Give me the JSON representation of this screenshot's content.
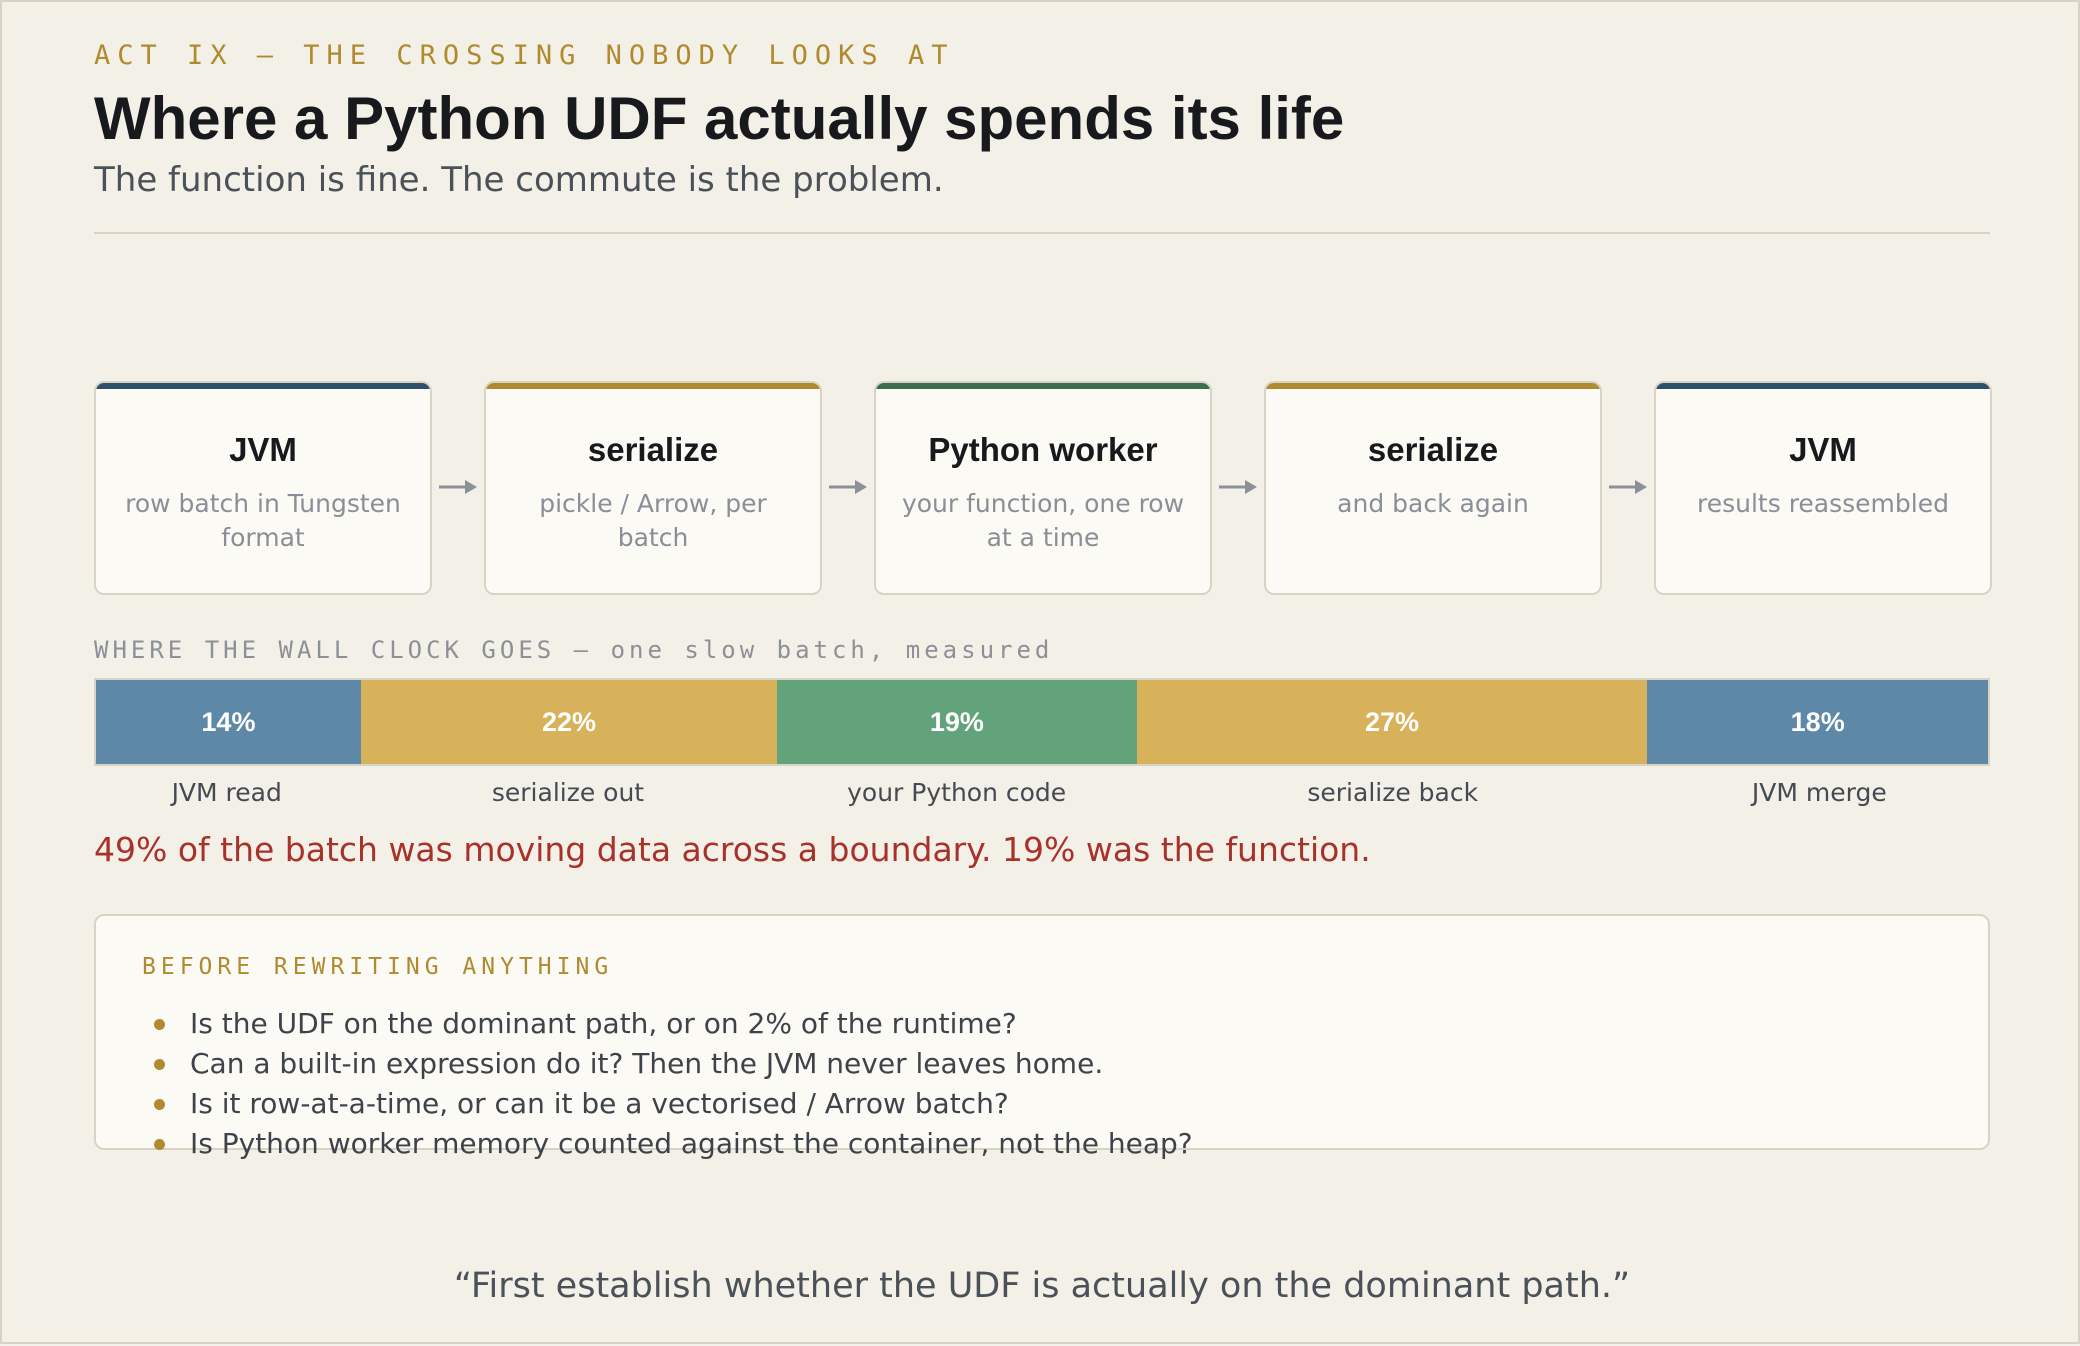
{
  "header": {
    "kicker": "ACT IX — THE CROSSING NOBODY LOOKS AT",
    "title": "Where a Python UDF actually spends its life",
    "subtitle": "The function is fine. The commute is the problem."
  },
  "pipeline": {
    "stages": [
      {
        "name": "JVM",
        "desc": "row batch in Tungsten format",
        "color": "#2f5069"
      },
      {
        "name": "serialize",
        "desc": "pickle / Arrow, per batch",
        "color": "#b08a2e"
      },
      {
        "name": "Python worker",
        "desc": "your function, one row at a time",
        "color": "#3a6e4f"
      },
      {
        "name": "serialize",
        "desc": "and back again",
        "color": "#b08a2e"
      },
      {
        "name": "JVM",
        "desc": "results reassembled",
        "color": "#2f5069"
      }
    ],
    "arrow_color": "#8c9097"
  },
  "wall_clock": {
    "label": "WHERE THE WALL CLOCK GOES — one slow batch, measured",
    "segments": [
      {
        "percent": 14,
        "text": "14%",
        "label": "JVM read",
        "color": "#5e88a8"
      },
      {
        "percent": 22,
        "text": "22%",
        "label": "serialize out",
        "color": "#d8b25b"
      },
      {
        "percent": 19,
        "text": "19%",
        "label": "your Python code",
        "color": "#62a37c"
      },
      {
        "percent": 27,
        "text": "27%",
        "label": "serialize back",
        "color": "#d8b25b"
      },
      {
        "percent": 18,
        "text": "18%",
        "label": "JVM merge",
        "color": "#5e88a8"
      }
    ],
    "callout": "49% of the batch was moving data across a boundary. 19% was the function."
  },
  "checklist": {
    "title": "BEFORE REWRITING ANYTHING",
    "items": [
      "Is the UDF on the dominant path, or on 2% of the runtime?",
      "Can a built-in expression do it? Then the JVM never leaves home.",
      "Is it row-at-a-time, or can it be a vectorised / Arrow batch?",
      "Is Python worker memory counted against the container, not the heap?"
    ]
  },
  "quote": "“First establish whether the UDF is actually on the dominant path.”"
}
